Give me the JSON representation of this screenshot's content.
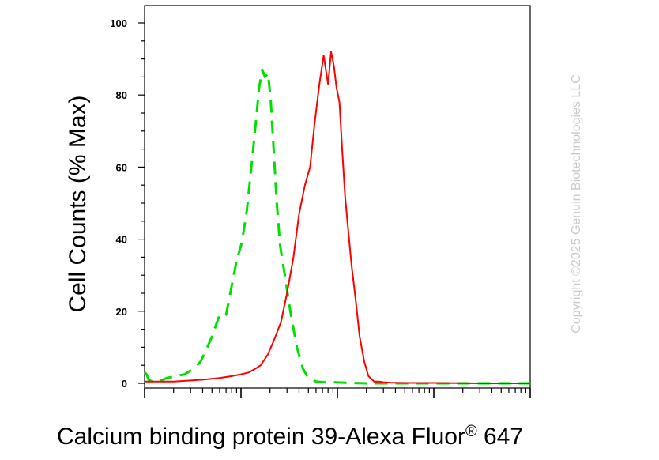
{
  "chart_data": {
    "type": "line",
    "title": "",
    "xlabel": "Calcium binding protein 39-Alexa Fluor",
    "xlabel_superscript": "®",
    "xlabel_suffix": " 647",
    "ylabel": "Cell Counts (% Max)",
    "x_scale": "log",
    "xlim": [
      1,
      10000
    ],
    "ylim": [
      0,
      100
    ],
    "y_ticks": [
      0,
      20,
      40,
      60,
      80,
      100
    ],
    "grid": false,
    "series": [
      {
        "color": "#00e000",
        "style": "dashed",
        "x": [
          1,
          1.05,
          1.1,
          1.2,
          1.4,
          1.7,
          2.1,
          2.6,
          3.2,
          3.8,
          4.3,
          5.0,
          6.0,
          7.0,
          8.0,
          9.0,
          10.2,
          11.5,
          12.8,
          14.2,
          15.4,
          16.6,
          17.7,
          19.1,
          20.4,
          21.8,
          23.5,
          25.5,
          28.5,
          32.5,
          38,
          44,
          50,
          60,
          75,
          95,
          130,
          200,
          350,
          600,
          1000,
          3000,
          10000
        ],
        "y": [
          3,
          2.5,
          1,
          0.5,
          0.5,
          1.5,
          2,
          2.5,
          4,
          6,
          9,
          13,
          19,
          19,
          27,
          34,
          39,
          48,
          60,
          72,
          82,
          87,
          85,
          86,
          78,
          65,
          50,
          38,
          30,
          20,
          10,
          4,
          1.5,
          0.5,
          0.3,
          0.3,
          0.1,
          0,
          0,
          0,
          0,
          0,
          0
        ]
      },
      {
        "color": "#ff0000",
        "style": "solid",
        "x": [
          1,
          2,
          4,
          6,
          8,
          10,
          12,
          14,
          16,
          19,
          22,
          26,
          30,
          35,
          40,
          46,
          52,
          58,
          65,
          72,
          80,
          86,
          92,
          98,
          105,
          112,
          120,
          130,
          140,
          155,
          170,
          190,
          210,
          240,
          270,
          300,
          350,
          500,
          1000,
          3000,
          10000
        ],
        "y": [
          0.5,
          0.5,
          1,
          1.5,
          2,
          2.5,
          3,
          4,
          5,
          8,
          12,
          17,
          25,
          35,
          47,
          55,
          60,
          72,
          83,
          91,
          83,
          92,
          88,
          82,
          78,
          65,
          52,
          42,
          33,
          23,
          13,
          6,
          2,
          0.5,
          0.5,
          0.3,
          0.2,
          0.1,
          0.1,
          0,
          0
        ]
      }
    ]
  },
  "watermark": "Copyright ©2025 Genuin Biotechnologies LLC"
}
